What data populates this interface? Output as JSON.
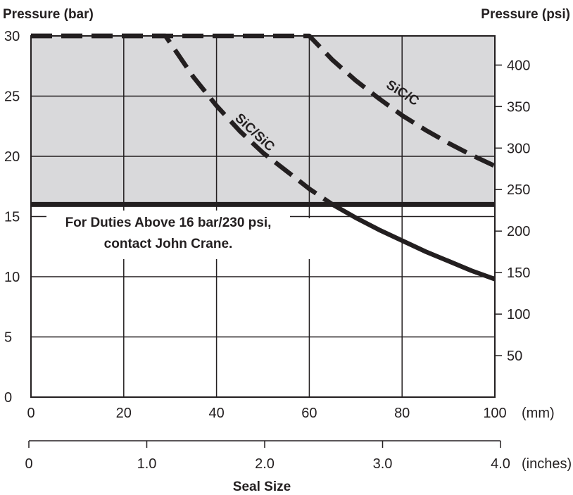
{
  "chart_data": {
    "type": "line",
    "title": "",
    "left_axis": {
      "label": "Pressure (bar)",
      "ticks": [
        0,
        5,
        10,
        15,
        20,
        25,
        30
      ],
      "range": [
        0,
        30
      ]
    },
    "right_axis": {
      "label": "Pressure (psi)",
      "ticks": [
        50,
        100,
        150,
        200,
        250,
        300,
        350,
        400
      ]
    },
    "x_axis_mm": {
      "ticks": [
        0,
        20,
        40,
        60,
        80,
        100
      ],
      "unit": "(mm)",
      "range": [
        0,
        100
      ]
    },
    "x_axis_inches": {
      "ticks": [
        "0",
        "1.0",
        "2.0",
        "3.0",
        "4.0"
      ],
      "unit": "(inches)"
    },
    "xlabel": "Seal Size",
    "grid": true,
    "shaded_region": {
      "from": 16,
      "to": 30,
      "color": "#d9d9db"
    },
    "limit_line": {
      "y": 16,
      "style": "solid"
    },
    "annotation": [
      "For Duties Above 16 bar/230 psi,",
      "contact John Crane."
    ],
    "series": [
      {
        "name": "SiC/SiC",
        "x": [
          0,
          29,
          35,
          40,
          45,
          50,
          55,
          60,
          65,
          70,
          75,
          80,
          85,
          90,
          95,
          100
        ],
        "y": [
          30,
          30,
          26.6,
          24.2,
          22.1,
          20.3,
          18.8,
          17.3,
          16.0,
          14.9,
          13.9,
          13.0,
          12.1,
          11.3,
          10.5,
          9.8
        ]
      },
      {
        "name": "SiC/C",
        "x": [
          0,
          60,
          65,
          70,
          75,
          80,
          85,
          90,
          95,
          100
        ],
        "y": [
          30,
          30,
          28.0,
          26.3,
          24.8,
          23.4,
          22.2,
          21.1,
          20.1,
          19.2
        ]
      }
    ],
    "colors": {
      "line": "#231f20",
      "shade": "#d9d9db",
      "grid": "#231f20"
    }
  }
}
